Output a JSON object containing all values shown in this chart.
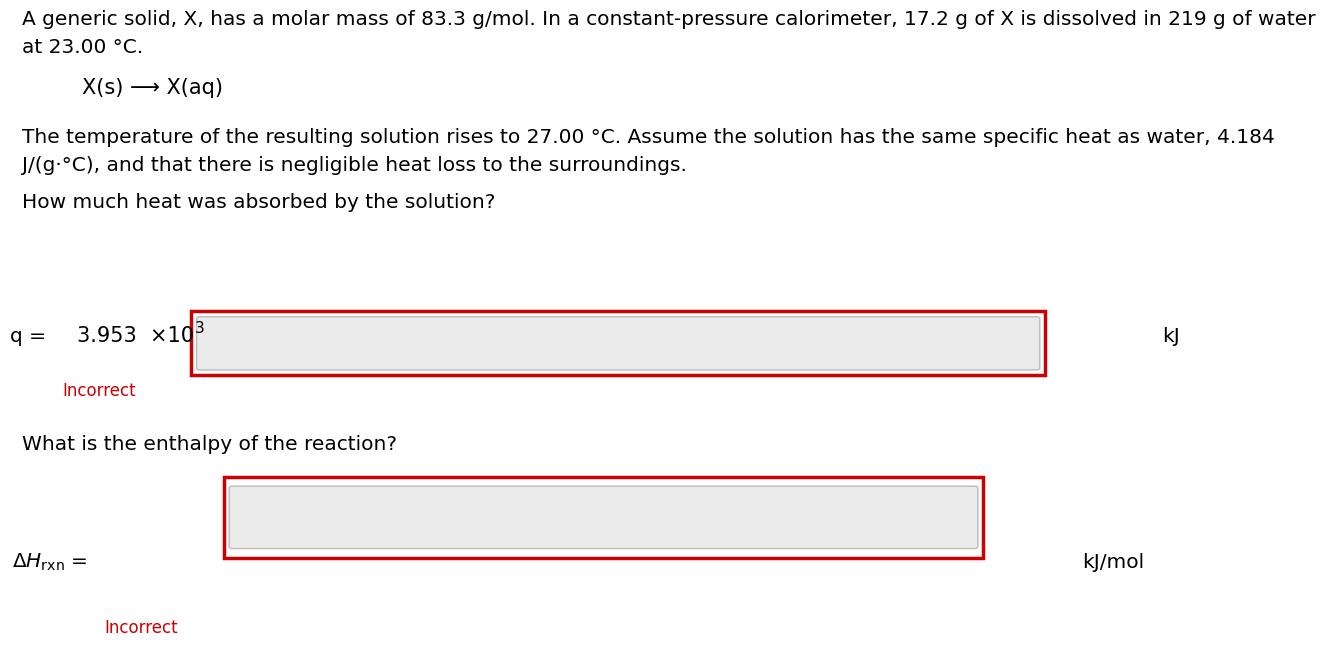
{
  "background_color": "#ffffff",
  "text_color": "#000000",
  "incorrect_color": "#cc0000",
  "input_box_color": "#ebebeb",
  "input_border_color": "#bbbbbb",
  "outer_box_color": "#cc0000",
  "paragraph1": "A generic solid, X, has a molar mass of 83.3 g/mol. In a constant-pressure calorimeter, 17.2 g of X is dissolved in 219 g of water",
  "paragraph1b": "at 23.00 °C.",
  "equation": "X(s) ⟶ X(aq)",
  "paragraph2": "The temperature of the resulting solution rises to 27.00 °C. Assume the solution has the same specific heat as water, 4.184",
  "paragraph2b": "J/(g·°C), and that there is negligible heat loss to the surroundings.",
  "question1": "How much heat was absorbed by the solution?",
  "q_label": "q =",
  "q_value": "3.953  ×10",
  "q_exponent": "3",
  "q_unit": "kJ",
  "incorrect_label": "Incorrect",
  "question2": "What is the enthalpy of the reaction?",
  "delta_h_unit": "kJ/mol",
  "font_size_body": 14.5,
  "font_size_equation": 15,
  "font_size_label": 14.5,
  "font_size_incorrect": 12,
  "font_size_value": 15
}
